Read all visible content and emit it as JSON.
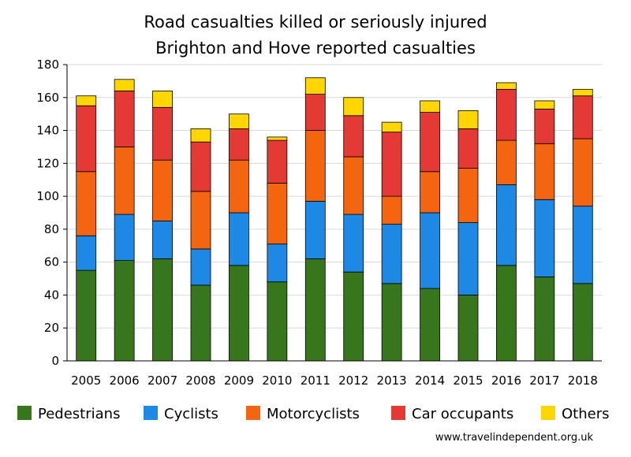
{
  "chart_data": {
    "type": "bar",
    "stacked": true,
    "title": "Road casualties killed or seriously injured",
    "subtitle": "Brighton and Hove reported casualties",
    "xlabel": "",
    "ylabel": "",
    "ylim": [
      0,
      180
    ],
    "yticks": [
      0,
      20,
      40,
      60,
      80,
      100,
      120,
      140,
      160,
      180
    ],
    "grid": true,
    "legend_position": "bottom",
    "categories": [
      "2005",
      "2006",
      "2007",
      "2008",
      "2009",
      "2010",
      "2011",
      "2012",
      "2013",
      "2014",
      "2015",
      "2016",
      "2017",
      "2018"
    ],
    "series": [
      {
        "name": "Pedestrians",
        "color": "#38761d",
        "values": [
          55,
          61,
          62,
          46,
          58,
          48,
          62,
          54,
          47,
          44,
          40,
          58,
          51,
          47
        ]
      },
      {
        "name": "Cyclists",
        "color": "#1e88e5",
        "values": [
          21,
          28,
          23,
          22,
          32,
          23,
          35,
          35,
          36,
          46,
          44,
          49,
          47,
          47
        ]
      },
      {
        "name": "Motorcyclists",
        "color": "#f4650f",
        "values": [
          39,
          41,
          37,
          35,
          32,
          37,
          43,
          35,
          17,
          25,
          33,
          27,
          34,
          41
        ]
      },
      {
        "name": "Car occupants",
        "color": "#e53935",
        "values": [
          40,
          34,
          32,
          30,
          19,
          26,
          22,
          25,
          39,
          36,
          24,
          31,
          21,
          26
        ]
      },
      {
        "name": "Others",
        "color": "#ffd600",
        "values": [
          6,
          7,
          10,
          8,
          9,
          2,
          10,
          11,
          6,
          7,
          11,
          4,
          5,
          4
        ]
      }
    ]
  },
  "source": "www.travelindependent.org.uk"
}
